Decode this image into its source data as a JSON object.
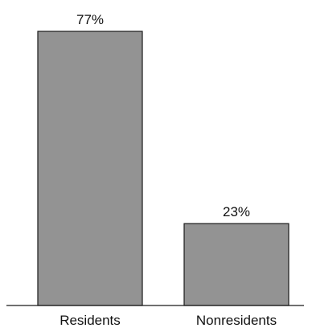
{
  "chart_data": {
    "type": "bar",
    "categories": [
      "Residents",
      "Nonresidents"
    ],
    "values": [
      77,
      23
    ],
    "data_labels": [
      "77%",
      "23%"
    ],
    "title": "",
    "xlabel": "",
    "ylabel": "",
    "ylim": [
      0,
      77
    ],
    "grid": false,
    "legend": "none",
    "colors": {
      "bar_fill": "#939393",
      "bar_stroke": "#1a1a1a"
    }
  }
}
